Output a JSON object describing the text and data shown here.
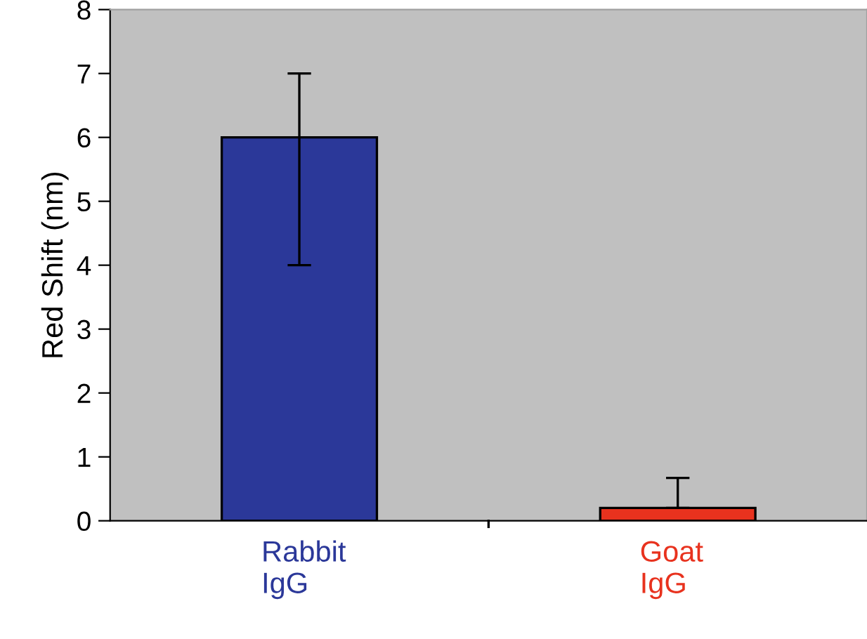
{
  "chart_data": {
    "type": "bar",
    "ylabel": "Red Shift (nm)",
    "categories": [
      "Rabbit\nIgG",
      "Goat\nIgG"
    ],
    "values": [
      6,
      0.2
    ],
    "colors": [
      "#2b3899",
      "#e8321e"
    ],
    "errors": [
      [
        4,
        7
      ],
      [
        0.2,
        0.67
      ]
    ],
    "ylim": [
      0,
      8
    ],
    "yticks": [
      0,
      1,
      2,
      3,
      4,
      5,
      6,
      7,
      8
    ],
    "grid": false,
    "legend": false
  }
}
